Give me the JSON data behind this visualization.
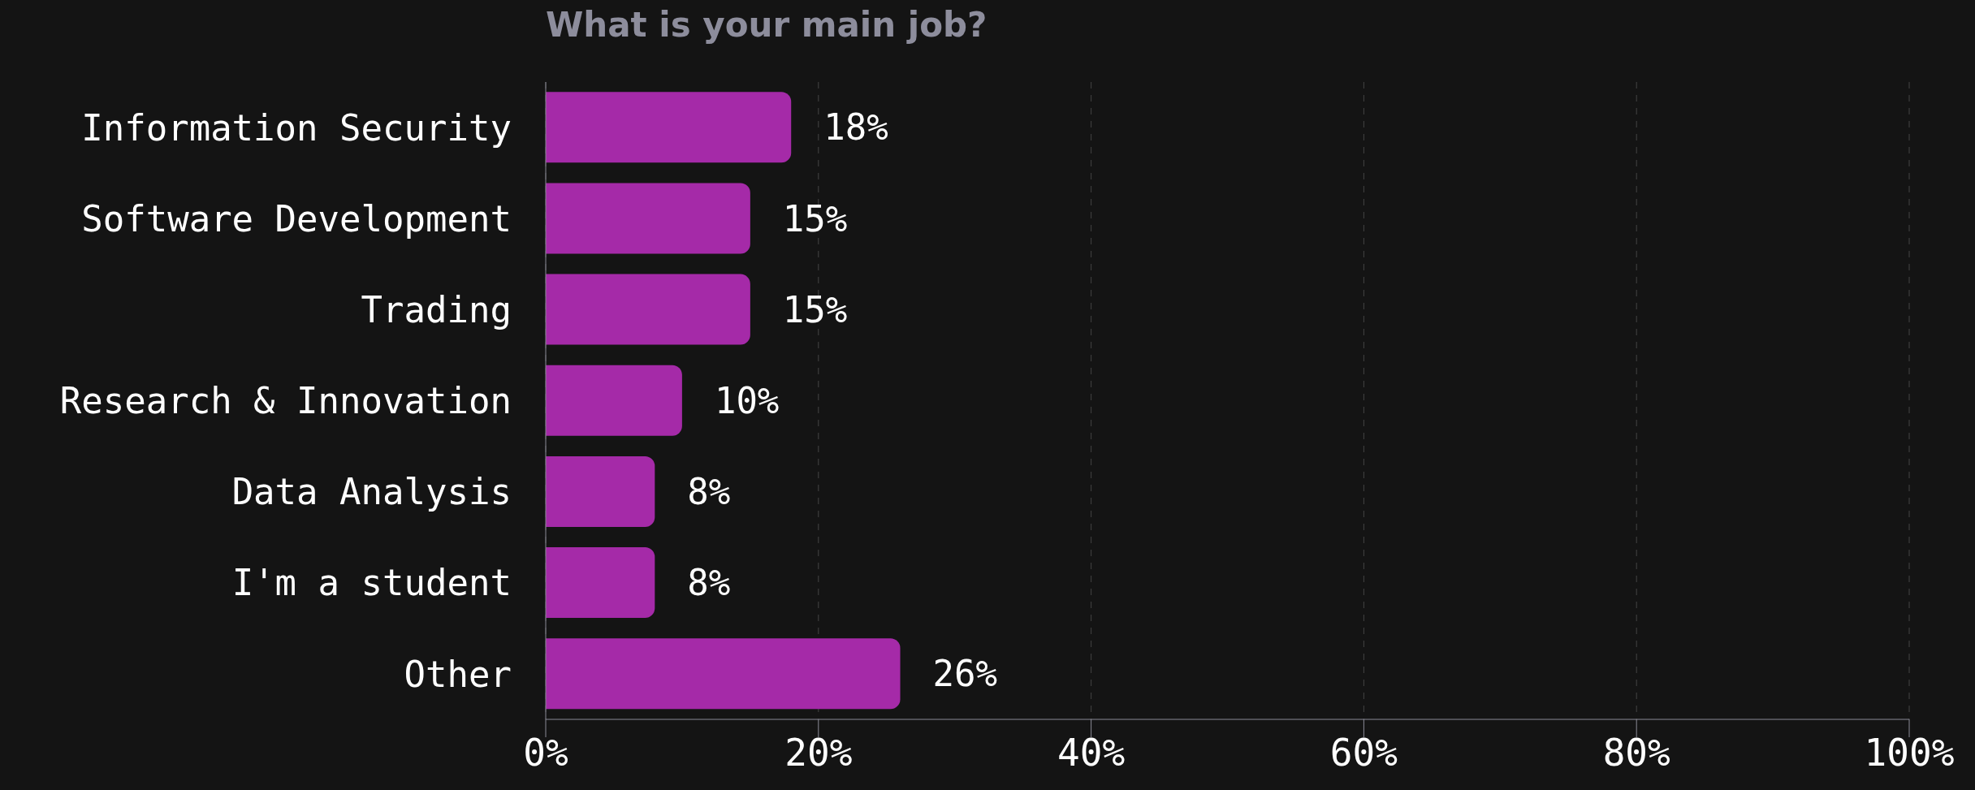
{
  "chart_data": {
    "type": "bar",
    "orientation": "horizontal",
    "title": "What is your main job?",
    "categories": [
      "Information Security",
      "Software Development",
      "Trading",
      "Research & Innovation",
      "Data Analysis",
      "I'm a student",
      "Other"
    ],
    "values": [
      18,
      15,
      15,
      10,
      8,
      8,
      26
    ],
    "value_labels": [
      "18%",
      "15%",
      "15%",
      "10%",
      "8%",
      "8%",
      "26%"
    ],
    "color": "#a52aa8",
    "xlim": [
      0,
      100
    ],
    "xticks": [
      {
        "value": 0,
        "label": "0%"
      },
      {
        "value": 20,
        "label": "20%"
      },
      {
        "value": 40,
        "label": "40%"
      },
      {
        "value": 60,
        "label": "60%"
      },
      {
        "value": 80,
        "label": "80%"
      },
      {
        "value": 100,
        "label": "100%"
      }
    ],
    "grid": "x",
    "legend": false
  }
}
